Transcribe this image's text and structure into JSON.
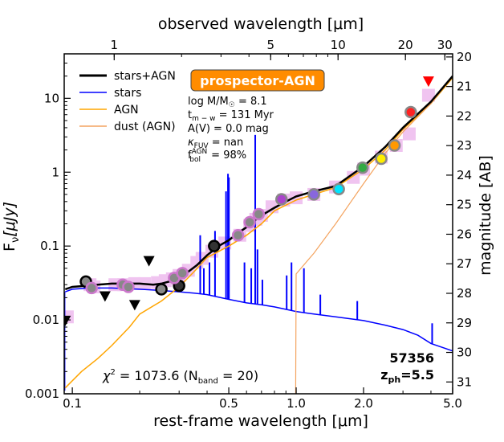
{
  "chart_data": {
    "type": "line",
    "title": "prospector-AGN",
    "xlabel": "rest-frame wavelength [μm]",
    "x2label": "observed wavelength [μm]",
    "ylabel_base": "F",
    "ylabel_sub": "ν",
    "ylabel_unit": "[μJy]",
    "y2label": "magnitude [AB]",
    "xscale": "log",
    "yscale": "log",
    "xlim": [
      0.092,
      5.0
    ],
    "ylim": [
      0.001,
      40
    ],
    "redshift": 5.5,
    "x_ticks": [
      0.1,
      0.5,
      1.0,
      2.0,
      5.0
    ],
    "x_tick_labels": [
      "0.1",
      "0.5",
      "1.0",
      "2.0",
      "5.0"
    ],
    "y_ticks": [
      0.001,
      0.01,
      0.1,
      1,
      10
    ],
    "y_tick_labels": [
      "0.001",
      "0.01",
      "0.1",
      "1",
      "10"
    ],
    "top_ticks": [
      1,
      5,
      10,
      20,
      30
    ],
    "top_tick_labels": [
      "1",
      "5",
      "10",
      "20",
      "30"
    ],
    "mag_ticks": [
      20,
      21,
      22,
      23,
      24,
      25,
      26,
      27,
      28,
      29,
      30,
      31
    ],
    "mag_tick_labels": [
      "20",
      "21",
      "22",
      "23",
      "24",
      "25",
      "26",
      "27",
      "28",
      "29",
      "30",
      "31"
    ],
    "legend": [
      {
        "label": "stars+AGN",
        "color": "#000000"
      },
      {
        "label": "stars",
        "color": "#0000ff"
      },
      {
        "label": "AGN",
        "color": "#ffa500"
      },
      {
        "label": "dust (AGN)",
        "color": "#f4a460"
      }
    ],
    "params": {
      "mass": "log M/M",
      "mass_sym": "☉",
      "mass_val": " = 8.1",
      "age_pre": "t",
      "age_sub": "m − w",
      "age_val": " = 131 Myr",
      "av": "A(V) = 0.0 mag",
      "kappa_pre": "κ",
      "kappa_sub": "FUV",
      "kappa_val": " = nan",
      "fbol_pre": "f",
      "fbol_sup": "AGN",
      "fbol_sub": "bol",
      "fbol_val": " = 98%"
    },
    "chi2_pre": "χ",
    "chi2_sup": "2",
    "chi2_mid": " = 1073.6 (N",
    "chi2_sub": "band",
    "chi2_post": " = 20)",
    "object_id": "57356",
    "zph_pre": "z",
    "zph_sub": "ph",
    "zph_val": "=5.5",
    "series": [
      {
        "name": "stars+AGN",
        "color": "#000000",
        "x": [
          0.093,
          0.1,
          0.115,
          0.13,
          0.15,
          0.18,
          0.2,
          0.23,
          0.25,
          0.27,
          0.3,
          0.33,
          0.36,
          0.4,
          0.45,
          0.5,
          0.55,
          0.6,
          0.65,
          0.7,
          0.8,
          0.9,
          1.0,
          1.2,
          1.5,
          2.0,
          2.5,
          3.0,
          4.0,
          5.0
        ],
        "y": [
          0.026,
          0.028,
          0.029,
          0.03,
          0.031,
          0.031,
          0.031,
          0.03,
          0.031,
          0.033,
          0.037,
          0.045,
          0.055,
          0.075,
          0.1,
          0.12,
          0.15,
          0.18,
          0.22,
          0.26,
          0.33,
          0.4,
          0.47,
          0.55,
          0.65,
          1.2,
          2.2,
          4.0,
          9.0,
          20
        ]
      },
      {
        "name": "stars",
        "color": "#0000ff",
        "x": [
          0.093,
          0.1,
          0.12,
          0.15,
          0.2,
          0.25,
          0.3,
          0.35,
          0.4,
          0.5,
          0.6,
          0.7,
          0.8,
          1.0,
          1.2,
          1.5,
          2.0,
          2.5,
          3.0,
          3.5,
          4.0,
          5.0
        ],
        "y": [
          0.024,
          0.026,
          0.027,
          0.027,
          0.026,
          0.025,
          0.024,
          0.023,
          0.022,
          0.019,
          0.017,
          0.016,
          0.015,
          0.013,
          0.012,
          0.011,
          0.0098,
          0.0085,
          0.0074,
          0.0062,
          0.0048,
          0.0038
        ]
      },
      {
        "name": "AGN",
        "color": "#ffa500",
        "x": [
          0.093,
          0.1,
          0.11,
          0.13,
          0.15,
          0.18,
          0.2,
          0.25,
          0.3,
          0.35,
          0.4,
          0.5,
          0.6,
          0.7,
          0.8,
          1.0,
          1.2,
          1.5,
          2.0,
          2.5,
          3.0,
          4.0,
          5.0
        ],
        "y": [
          0.0012,
          0.0015,
          0.002,
          0.003,
          0.0045,
          0.008,
          0.012,
          0.018,
          0.028,
          0.045,
          0.07,
          0.1,
          0.14,
          0.2,
          0.3,
          0.42,
          0.5,
          0.62,
          1.1,
          2.0,
          3.8,
          8.5,
          19
        ]
      },
      {
        "name": "dust (AGN)",
        "color": "#f4a460",
        "x": [
          0.995,
          1.0,
          1.2,
          1.5,
          2.0,
          2.5,
          3.0,
          4.0,
          5.0
        ],
        "y": [
          0.001,
          0.042,
          0.08,
          0.2,
          0.7,
          1.8,
          3.5,
          8.5,
          20
        ]
      }
    ],
    "model_photometry": {
      "x": [
        0.095,
        0.12,
        0.125,
        0.155,
        0.17,
        0.19,
        0.21,
        0.24,
        0.26,
        0.28,
        0.3,
        0.33,
        0.36,
        0.38,
        0.42,
        0.48,
        0.56,
        0.62,
        0.66,
        0.7,
        0.78,
        0.88,
        1.0,
        1.2,
        1.5,
        1.8,
        2.0,
        2.4,
        2.8,
        3.2,
        3.9
      ],
      "y": [
        0.011,
        0.03,
        0.028,
        0.03,
        0.03,
        0.031,
        0.031,
        0.032,
        0.034,
        0.036,
        0.04,
        0.047,
        0.06,
        0.068,
        0.085,
        0.11,
        0.14,
        0.19,
        0.23,
        0.26,
        0.34,
        0.42,
        0.45,
        0.5,
        0.63,
        0.85,
        1.1,
        1.6,
        2.3,
        3.3,
        11
      ]
    },
    "observed_photometry": [
      {
        "x": 0.115,
        "y": 0.033,
        "fill": "#888888",
        "ring": "#000000"
      },
      {
        "x": 0.122,
        "y": 0.027,
        "fill": "#888888",
        "ring": "#cc77cc"
      },
      {
        "x": 0.168,
        "y": 0.03,
        "fill": "#888888",
        "ring": "#cc77cc"
      },
      {
        "x": 0.178,
        "y": 0.028,
        "fill": "#888888",
        "ring": "#cc77cc"
      },
      {
        "x": 0.25,
        "y": 0.026,
        "fill": "#888888",
        "ring": "#000000"
      },
      {
        "x": 0.3,
        "y": 0.029,
        "fill": "#333333",
        "ring": "#000000"
      },
      {
        "x": 0.285,
        "y": 0.037,
        "fill": "#888888",
        "ring": "#cc77cc"
      },
      {
        "x": 0.31,
        "y": 0.043,
        "fill": "#888888",
        "ring": "#cc77cc"
      },
      {
        "x": 0.43,
        "y": 0.1,
        "fill": "#333333",
        "ring": "#000000"
      },
      {
        "x": 0.55,
        "y": 0.14,
        "fill": "#888888",
        "ring": "#cc77cc"
      },
      {
        "x": 0.62,
        "y": 0.21,
        "fill": "#888888",
        "ring": "#cc77cc"
      },
      {
        "x": 0.68,
        "y": 0.27,
        "fill": "#888888",
        "ring": "#cc77cc"
      },
      {
        "x": 0.86,
        "y": 0.43,
        "fill": "#aa44cc",
        "ring": "#888888"
      },
      {
        "x": 1.2,
        "y": 0.5,
        "fill": "#8866dd",
        "ring": "#888888"
      },
      {
        "x": 1.55,
        "y": 0.59,
        "fill": "#00e5ff",
        "ring": "#888888"
      },
      {
        "x": 1.98,
        "y": 1.15,
        "fill": "#33aa44",
        "ring": "#888888"
      },
      {
        "x": 2.4,
        "y": 1.52,
        "fill": "#ffee00",
        "ring": "#888888"
      },
      {
        "x": 2.75,
        "y": 2.3,
        "fill": "#ff9900",
        "ring": "#888888"
      },
      {
        "x": 3.25,
        "y": 6.5,
        "fill": "#ff2222",
        "ring": "#888888"
      }
    ],
    "upper_limits": [
      {
        "x": 0.093,
        "y": 0.0098,
        "color": "#000000"
      },
      {
        "x": 0.14,
        "y": 0.021,
        "color": "#000000"
      },
      {
        "x": 0.19,
        "y": 0.016,
        "color": "#000000"
      },
      {
        "x": 0.22,
        "y": 0.063,
        "color": "#000000"
      },
      {
        "x": 3.9,
        "y": 17,
        "color": "#ff0000"
      }
    ],
    "emission_lines": [
      {
        "x": 0.3727,
        "series": "stars",
        "peak": 0.14
      },
      {
        "x": 0.3869,
        "series": "stars",
        "peak": 0.05
      },
      {
        "x": 0.41,
        "series": "stars",
        "peak": 0.06
      },
      {
        "x": 0.434,
        "series": "stars",
        "peak": 0.16
      },
      {
        "x": 0.4861,
        "series": "stars",
        "peak": 0.55
      },
      {
        "x": 0.4959,
        "series": "stars",
        "peak": 0.95
      },
      {
        "x": 0.5007,
        "series": "stars",
        "peak": 0.85
      },
      {
        "x": 0.5876,
        "series": "stars",
        "peak": 0.06
      },
      {
        "x": 0.63,
        "series": "stars",
        "peak": 0.05
      },
      {
        "x": 0.6563,
        "series": "stars",
        "peak": 3.2
      },
      {
        "x": 0.6716,
        "series": "stars",
        "peak": 0.09
      },
      {
        "x": 0.7065,
        "series": "stars",
        "peak": 0.035
      },
      {
        "x": 0.9069,
        "series": "stars",
        "peak": 0.04
      },
      {
        "x": 0.9531,
        "series": "stars",
        "peak": 0.06
      },
      {
        "x": 1.083,
        "series": "stars",
        "peak": 0.05
      },
      {
        "x": 1.282,
        "series": "stars",
        "peak": 0.022
      },
      {
        "x": 1.875,
        "series": "stars",
        "peak": 0.018
      },
      {
        "x": 4.05,
        "series": "stars",
        "peak": 0.009
      }
    ]
  }
}
